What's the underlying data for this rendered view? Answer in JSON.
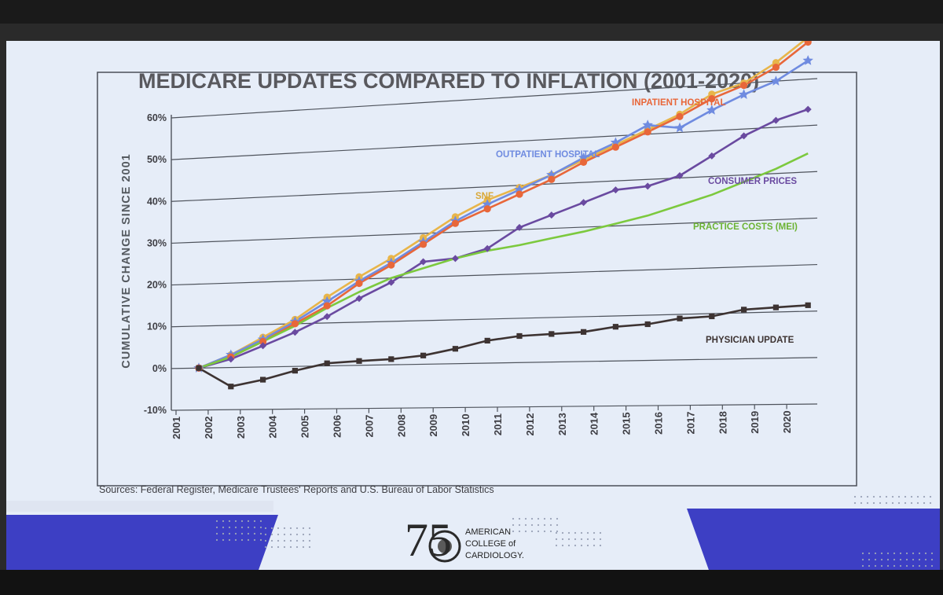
{
  "slide": {
    "source": "Sources: Federal Register, Medicare Trustees' Reports and U.S. Bureau of Labor Statistics",
    "logo": {
      "number": "75",
      "line1": "AMERICAN",
      "line2": "COLLEGE of",
      "line3": "CARDIOLOGY."
    }
  },
  "chart_data": {
    "type": "line",
    "title": "MEDICARE UPDATES COMPARED TO INFLATION (2001-2020)",
    "xlabel": "",
    "ylabel": "CUMULATIVE CHANGE SINCE 2001",
    "x": [
      2001,
      2002,
      2003,
      2004,
      2005,
      2006,
      2007,
      2008,
      2009,
      2010,
      2011,
      2012,
      2013,
      2014,
      2015,
      2016,
      2017,
      2018,
      2019,
      2020
    ],
    "x_tick_labels": [
      "2001",
      "2002",
      "2003",
      "2004",
      "2005",
      "2006",
      "2007",
      "2008",
      "2009",
      "2010",
      "2011",
      "2012",
      "2013",
      "2014",
      "2015",
      "2016",
      "2017",
      "2018",
      "2019",
      "2020"
    ],
    "y_tick_labels": [
      "-10%",
      "0%",
      "10%",
      "20%",
      "30%",
      "40%",
      "50%",
      "60%"
    ],
    "ylim": [
      -10,
      60
    ],
    "grid": true,
    "series": [
      {
        "name": "SNF",
        "color": "#e8b54a",
        "marker": "circle",
        "values": [
          0,
          3,
          7,
          11,
          16,
          20.5,
          24.5,
          29,
          33.5,
          37,
          39.5,
          42,
          45,
          48,
          51,
          54,
          58,
          60,
          64,
          69
        ]
      },
      {
        "name": "OUTPATIENT HOSPITAL",
        "color": "#6f8be0",
        "marker": "star",
        "values": [
          0,
          3,
          6.5,
          10.5,
          15,
          19.5,
          23.5,
          28,
          32.5,
          36,
          39,
          42,
          45.5,
          48.5,
          52,
          51,
          54.5,
          57.5,
          60,
          64
        ]
      },
      {
        "name": "INPATIENT HOSPITAL",
        "color": "#e8673a",
        "marker": "circle",
        "values": [
          0,
          2.5,
          6,
          10,
          14,
          19,
          23,
          27.5,
          32,
          35,
          38,
          41,
          44.5,
          47.5,
          50.5,
          53.5,
          57,
          59.5,
          63,
          68
        ]
      },
      {
        "name": "CONSUMER PRICES",
        "color": "#6a4aa0",
        "marker": "diamond",
        "values": [
          0,
          2,
          5,
          8,
          11.5,
          15.5,
          19,
          23.5,
          24,
          26,
          30.5,
          33,
          35.5,
          38,
          38.5,
          40.5,
          44.5,
          48.5,
          51.5,
          53.5
        ]
      },
      {
        "name": "PRACTICE COSTS (MEI)",
        "color": "#7cc93e",
        "marker": "none",
        "values": [
          0,
          2.5,
          6,
          9.5,
          13.5,
          17,
          20,
          22,
          24,
          25.5,
          26.5,
          27.8,
          29,
          30.5,
          32,
          34,
          36,
          38.5,
          41,
          44
        ]
      },
      {
        "name": "PHYSICIAN UPDATE",
        "color": "#3d3332",
        "marker": "square",
        "values": [
          0,
          -4.5,
          -3,
          -1,
          0.6,
          1,
          1.3,
          2,
          3.4,
          5.1,
          6,
          6.3,
          6.6,
          7.6,
          8,
          9.1,
          9.4,
          10.7,
          11,
          11.3
        ]
      }
    ],
    "colors": {
      "slide_background": "#e6edf8",
      "title": "#59595e",
      "band_blue": "#3d3fc4"
    }
  }
}
